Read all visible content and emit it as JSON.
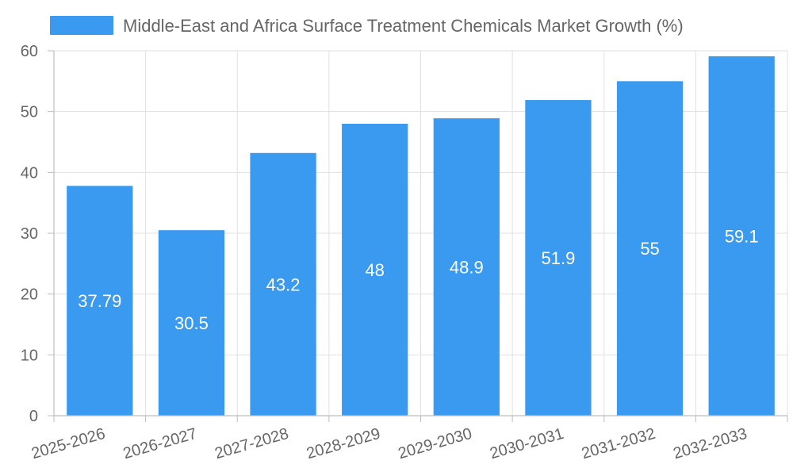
{
  "chart_data": {
    "type": "bar",
    "title": "",
    "xlabel": "",
    "ylabel": "",
    "categories": [
      "2025-2026",
      "2026-2027",
      "2027-2028",
      "2028-2029",
      "2029-2030",
      "2030-2031",
      "2031-2032",
      "2032-2033"
    ],
    "series": [
      {
        "name": "Middle-East and Africa Surface Treatment Chemicals Market Growth (%)",
        "values": [
          37.79,
          30.5,
          43.2,
          48,
          48.9,
          51.9,
          55,
          59.1
        ],
        "data_labels": [
          "37.79",
          "30.5",
          "43.2",
          "48",
          "48.9",
          "51.9",
          "55",
          "59.1"
        ],
        "color": "#3a9aef"
      }
    ],
    "ylim": [
      0,
      60
    ],
    "yticks": [
      0,
      10,
      20,
      30,
      40,
      50,
      60
    ],
    "grid": true,
    "legend_position": "top-center"
  }
}
